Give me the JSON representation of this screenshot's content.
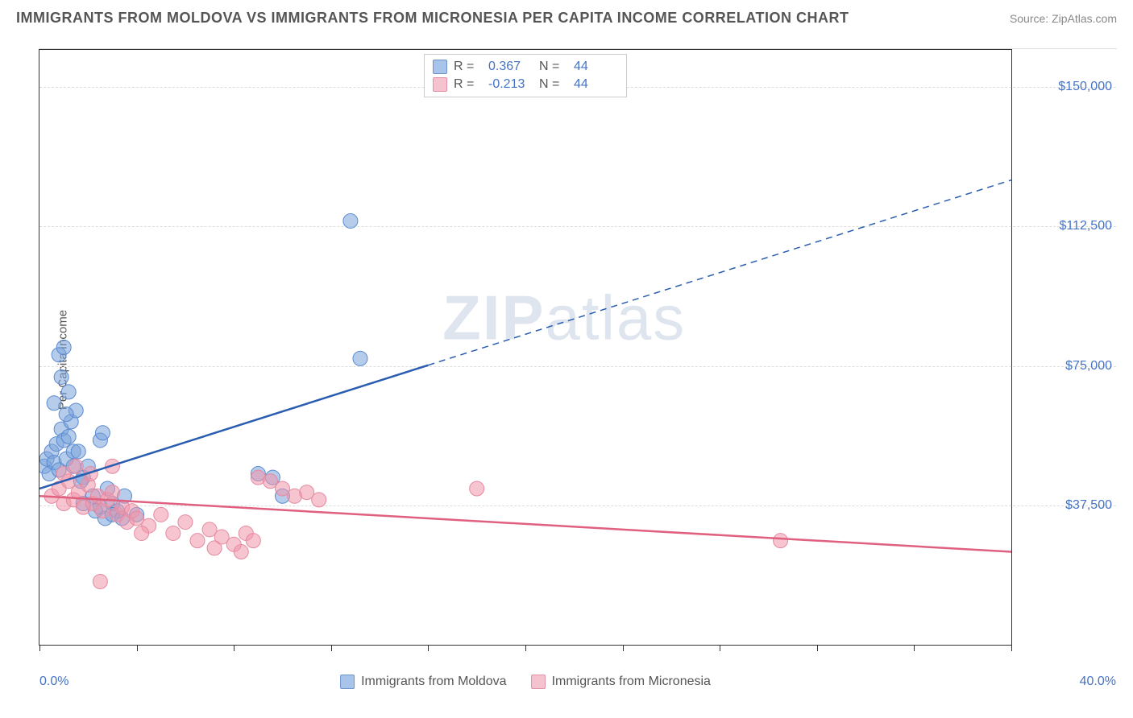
{
  "header": {
    "title": "IMMIGRANTS FROM MOLDOVA VS IMMIGRANTS FROM MICRONESIA PER CAPITA INCOME CORRELATION CHART",
    "source": "Source: ZipAtlas.com"
  },
  "chart": {
    "type": "scatter",
    "y_axis_label": "Per Capita Income",
    "xlim": [
      0,
      40
    ],
    "ylim": [
      0,
      160000
    ],
    "x_min_label": "0.0%",
    "x_max_label": "40.0%",
    "y_ticks": [
      {
        "value": 37500,
        "label": "$37,500"
      },
      {
        "value": 75000,
        "label": "$75,000"
      },
      {
        "value": 112500,
        "label": "$112,500"
      },
      {
        "value": 150000,
        "label": "$150,000"
      }
    ],
    "x_tick_positions": [
      0,
      4,
      8,
      12,
      16,
      20,
      24,
      28,
      32,
      36,
      40
    ],
    "grid_color": "#dddddd",
    "background_color": "#ffffff",
    "series": [
      {
        "name": "Immigrants from Moldova",
        "color_fill": "rgba(122,163,219,0.55)",
        "color_stroke": "#5a8bd0",
        "swatch_fill": "#a9c4ea",
        "swatch_border": "#6b94cb",
        "trend_color": "#2a5db0",
        "R": "0.367",
        "N": "44",
        "trend": {
          "x1": 0,
          "y1": 42000,
          "x2": 40,
          "y2": 125000,
          "solid_until_x": 16
        },
        "points": [
          [
            0.2,
            48000
          ],
          [
            0.3,
            50000
          ],
          [
            0.4,
            46000
          ],
          [
            0.5,
            52000
          ],
          [
            0.6,
            49000
          ],
          [
            0.7,
            54000
          ],
          [
            0.8,
            47000
          ],
          [
            0.9,
            58000
          ],
          [
            1.0,
            55000
          ],
          [
            1.1,
            50000
          ],
          [
            1.2,
            56000
          ],
          [
            1.3,
            60000
          ],
          [
            1.4,
            52000
          ],
          [
            1.5,
            63000
          ],
          [
            0.8,
            78000
          ],
          [
            1.8,
            45000
          ],
          [
            2.0,
            48000
          ],
          [
            2.2,
            40000
          ],
          [
            2.5,
            37000
          ],
          [
            2.8,
            42000
          ],
          [
            3.0,
            38000
          ],
          [
            1.2,
            68000
          ],
          [
            1.0,
            80000
          ],
          [
            2.5,
            55000
          ],
          [
            3.2,
            36000
          ],
          [
            3.5,
            40000
          ],
          [
            4.0,
            35000
          ],
          [
            1.6,
            52000
          ],
          [
            0.6,
            65000
          ],
          [
            1.8,
            38000
          ],
          [
            2.3,
            36000
          ],
          [
            2.7,
            34000
          ],
          [
            3.0,
            35000
          ],
          [
            3.4,
            34000
          ],
          [
            1.4,
            48000
          ],
          [
            12.8,
            114000
          ],
          [
            13.2,
            77000
          ],
          [
            9.0,
            46000
          ],
          [
            9.6,
            45000
          ],
          [
            10.0,
            40000
          ],
          [
            2.6,
            57000
          ],
          [
            1.7,
            44000
          ],
          [
            0.9,
            72000
          ],
          [
            1.1,
            62000
          ]
        ]
      },
      {
        "name": "Immigrants from Micronesia",
        "color_fill": "rgba(240,150,170,0.55)",
        "color_stroke": "#e48aa0",
        "swatch_fill": "#f5c2cf",
        "swatch_border": "#e190a5",
        "trend_color": "#e06080",
        "R": "-0.213",
        "N": "44",
        "trend": {
          "x1": 0,
          "y1": 40000,
          "x2": 40,
          "y2": 25000,
          "solid_until_x": 40
        },
        "points": [
          [
            0.5,
            40000
          ],
          [
            0.8,
            42000
          ],
          [
            1.0,
            38000
          ],
          [
            1.2,
            44000
          ],
          [
            1.4,
            39000
          ],
          [
            1.6,
            41000
          ],
          [
            1.8,
            37000
          ],
          [
            2.0,
            43000
          ],
          [
            2.2,
            38000
          ],
          [
            2.4,
            40000
          ],
          [
            2.6,
            36000
          ],
          [
            2.8,
            39000
          ],
          [
            3.0,
            41000
          ],
          [
            3.2,
            35000
          ],
          [
            3.4,
            37000
          ],
          [
            3.6,
            33000
          ],
          [
            3.8,
            36000
          ],
          [
            4.0,
            34000
          ],
          [
            4.5,
            32000
          ],
          [
            5.0,
            35000
          ],
          [
            5.5,
            30000
          ],
          [
            6.0,
            33000
          ],
          [
            6.5,
            28000
          ],
          [
            7.0,
            31000
          ],
          [
            7.2,
            26000
          ],
          [
            7.5,
            29000
          ],
          [
            8.0,
            27000
          ],
          [
            8.3,
            25000
          ],
          [
            8.5,
            30000
          ],
          [
            8.8,
            28000
          ],
          [
            9.0,
            45000
          ],
          [
            9.5,
            44000
          ],
          [
            10.0,
            42000
          ],
          [
            10.5,
            40000
          ],
          [
            11.0,
            41000
          ],
          [
            11.5,
            39000
          ],
          [
            2.5,
            17000
          ],
          [
            18.0,
            42000
          ],
          [
            30.5,
            28000
          ],
          [
            1.0,
            46000
          ],
          [
            1.5,
            48000
          ],
          [
            2.1,
            46000
          ],
          [
            3.0,
            48000
          ],
          [
            4.2,
            30000
          ]
        ]
      }
    ],
    "watermark": {
      "part1": "ZIP",
      "part2": "atlas"
    },
    "marker_radius": 9,
    "marker_stroke_width": 1,
    "trend_line_width": 2.5
  },
  "legend_top": {
    "r_label": "R =",
    "n_label": "N ="
  }
}
